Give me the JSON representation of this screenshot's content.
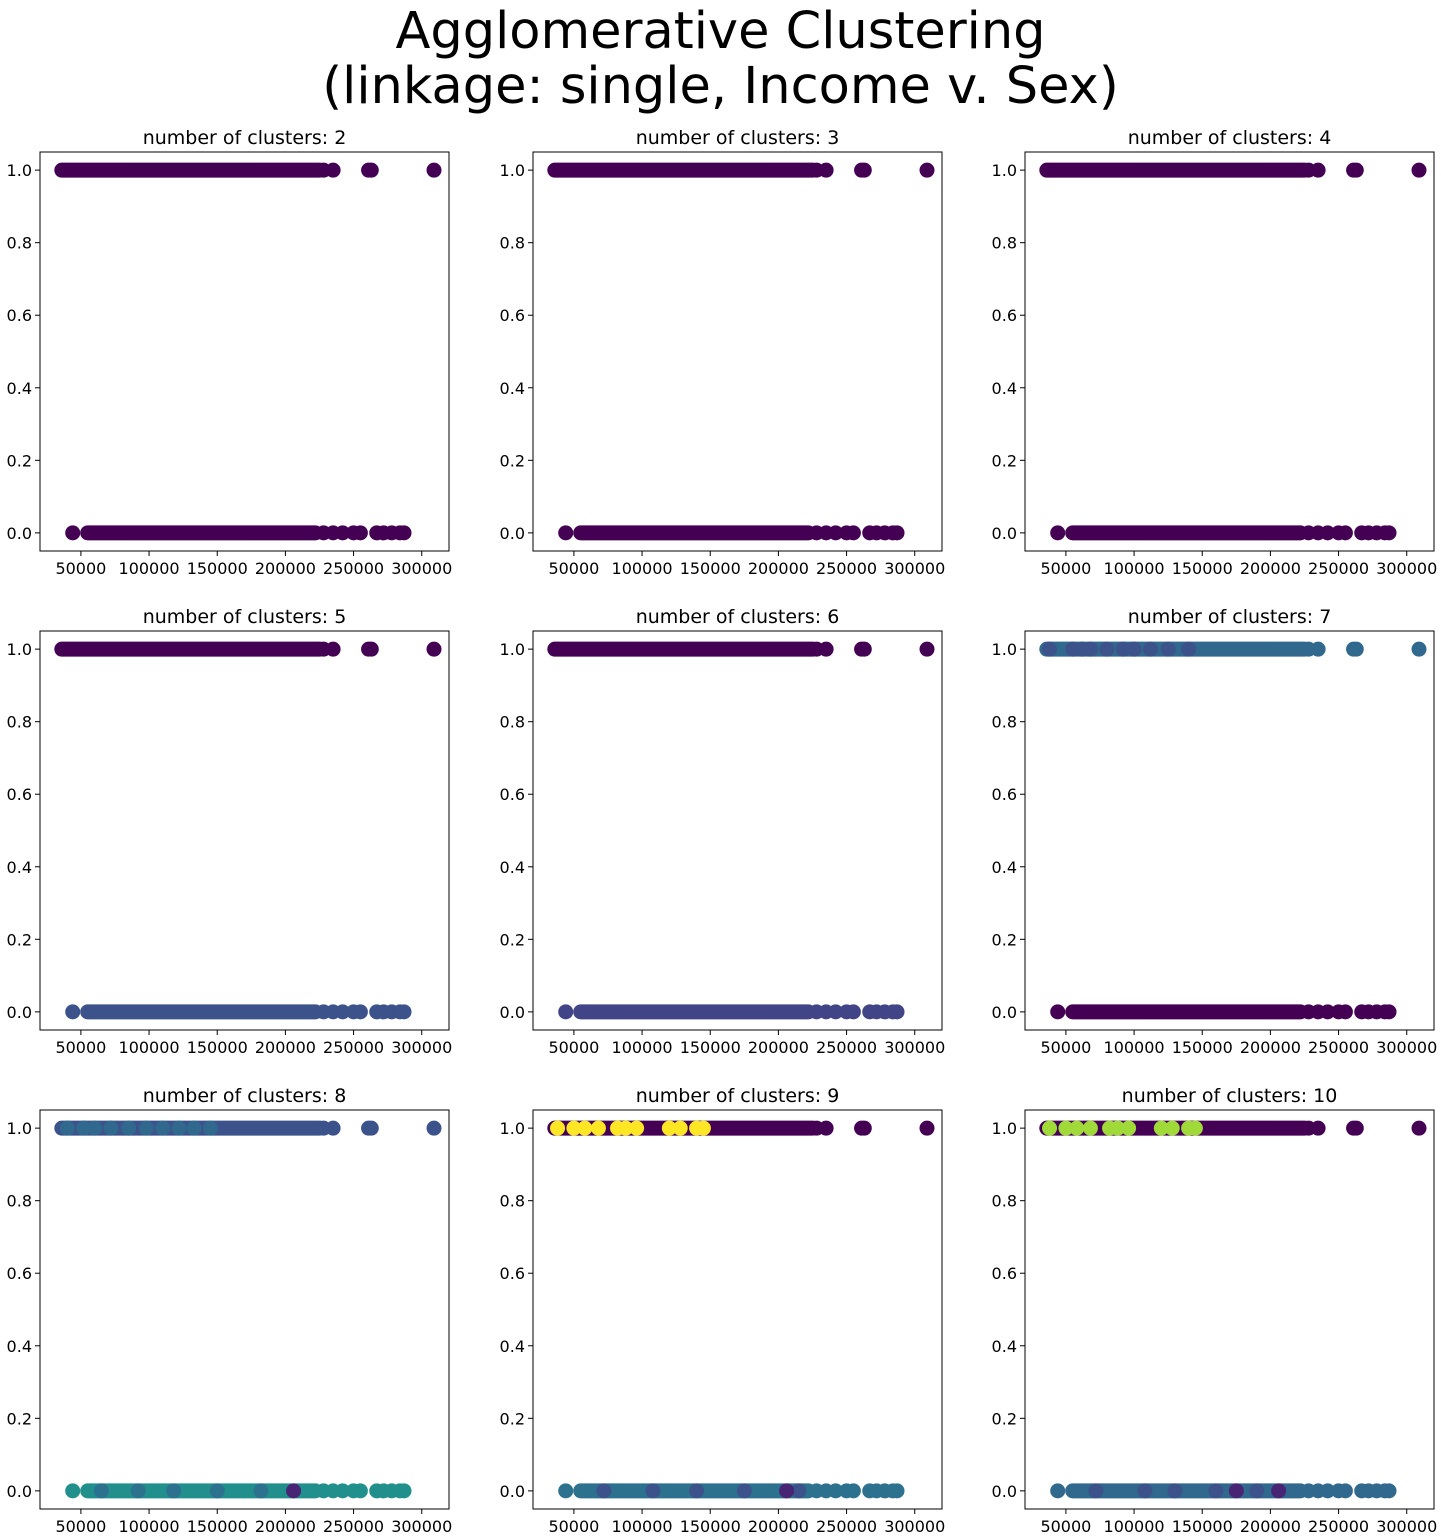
{
  "title_lines": [
    "Agglomerative Clustering",
    "(linkage: single, Income v. Sex)"
  ],
  "colors": {
    "viridis_dark": "#440154",
    "purple": "#482475",
    "indigo": "#414487",
    "blue_slate": "#3b528b",
    "steel_blue": "#31688e",
    "teal_blue": "#2c728e",
    "teal": "#21908d",
    "yellow": "#fde725",
    "lime": "#a0da39"
  },
  "chart_data": [
    {
      "type": "scatter",
      "title": "number of clusters: 2",
      "xlim": [
        20000,
        320000
      ],
      "ylim": [
        -0.05,
        1.05
      ],
      "xticks": [
        "50000",
        "100000",
        "150000",
        "200000",
        "250000",
        "300000"
      ],
      "yticks": [
        "0.0",
        "0.2",
        "0.4",
        "0.6",
        "0.8",
        "1.0"
      ],
      "series": [
        {
          "y": 1,
          "color": "#440154",
          "x_dense": [
            36000,
            225000
          ],
          "x": [
            228000,
            235000,
            261000,
            263000,
            309000
          ]
        },
        {
          "y": 0,
          "color": "#440154",
          "x_dense": [
            55000,
            222000
          ],
          "x": [
            44000,
            228000,
            235000,
            242000,
            250000,
            255000,
            267000,
            272000,
            278000,
            284000,
            287000
          ]
        }
      ]
    },
    {
      "type": "scatter",
      "title": "number of clusters: 3",
      "xlim": [
        20000,
        320000
      ],
      "ylim": [
        -0.05,
        1.05
      ],
      "xticks": [
        "50000",
        "100000",
        "150000",
        "200000",
        "250000",
        "300000"
      ],
      "yticks": [
        "0.0",
        "0.2",
        "0.4",
        "0.6",
        "0.8",
        "1.0"
      ],
      "series": [
        {
          "y": 1,
          "color": "#440154",
          "x_dense": [
            36000,
            225000
          ],
          "x": [
            228000,
            235000,
            261000,
            263000,
            309000
          ]
        },
        {
          "y": 0,
          "color": "#440154",
          "x_dense": [
            55000,
            222000
          ],
          "x": [
            44000,
            228000,
            235000,
            242000,
            250000,
            255000,
            267000,
            272000,
            278000,
            284000,
            287000
          ]
        }
      ]
    },
    {
      "type": "scatter",
      "title": "number of clusters: 4",
      "xlim": [
        20000,
        320000
      ],
      "ylim": [
        -0.05,
        1.05
      ],
      "xticks": [
        "50000",
        "100000",
        "150000",
        "200000",
        "250000",
        "300000"
      ],
      "yticks": [
        "0.0",
        "0.2",
        "0.4",
        "0.6",
        "0.8",
        "1.0"
      ],
      "series": [
        {
          "y": 1,
          "color": "#440154",
          "x_dense": [
            36000,
            225000
          ],
          "x": [
            228000,
            235000,
            261000,
            263000,
            309000
          ]
        },
        {
          "y": 0,
          "color": "#440154",
          "x_dense": [
            55000,
            222000
          ],
          "x": [
            44000,
            228000,
            235000,
            242000,
            250000,
            255000,
            267000,
            272000,
            278000,
            284000,
            287000
          ]
        }
      ]
    },
    {
      "type": "scatter",
      "title": "number of clusters: 5",
      "xlim": [
        20000,
        320000
      ],
      "ylim": [
        -0.05,
        1.05
      ],
      "xticks": [
        "50000",
        "100000",
        "150000",
        "200000",
        "250000",
        "300000"
      ],
      "yticks": [
        "0.0",
        "0.2",
        "0.4",
        "0.6",
        "0.8",
        "1.0"
      ],
      "series": [
        {
          "y": 1,
          "color": "#440154",
          "x_dense": [
            36000,
            225000
          ],
          "x": [
            228000,
            235000,
            261000,
            263000,
            309000
          ]
        },
        {
          "y": 0,
          "color": "#3b528b",
          "x_dense": [
            55000,
            222000
          ],
          "x": [
            44000,
            228000,
            235000,
            242000,
            250000,
            255000,
            267000,
            272000,
            278000,
            284000,
            287000
          ]
        }
      ]
    },
    {
      "type": "scatter",
      "title": "number of clusters: 6",
      "xlim": [
        20000,
        320000
      ],
      "ylim": [
        -0.05,
        1.05
      ],
      "xticks": [
        "50000",
        "100000",
        "150000",
        "200000",
        "250000",
        "300000"
      ],
      "yticks": [
        "0.0",
        "0.2",
        "0.4",
        "0.6",
        "0.8",
        "1.0"
      ],
      "series": [
        {
          "y": 1,
          "color": "#440154",
          "x_dense": [
            36000,
            225000
          ],
          "x": [
            228000,
            235000,
            261000,
            263000,
            309000
          ]
        },
        {
          "y": 0,
          "color": "#414487",
          "x_dense": [
            55000,
            222000
          ],
          "x": [
            44000,
            228000,
            235000,
            242000,
            250000,
            255000,
            267000,
            272000,
            278000,
            284000,
            287000
          ]
        }
      ]
    },
    {
      "type": "scatter",
      "title": "number of clusters: 7",
      "xlim": [
        20000,
        320000
      ],
      "ylim": [
        -0.05,
        1.05
      ],
      "xticks": [
        "50000",
        "100000",
        "150000",
        "200000",
        "250000",
        "300000"
      ],
      "yticks": [
        "0.0",
        "0.2",
        "0.4",
        "0.6",
        "0.8",
        "1.0"
      ],
      "series": [
        {
          "y": 1,
          "color": "#31688e",
          "x_dense": [
            36000,
            225000
          ],
          "x": [
            228000,
            235000,
            261000,
            263000,
            309000
          ]
        },
        {
          "y": 1,
          "color": "#3b528b",
          "x": [
            38000,
            55000,
            62000,
            68000,
            80000,
            92000,
            100000,
            112000,
            125000,
            140000
          ]
        },
        {
          "y": 0,
          "color": "#440154",
          "x_dense": [
            55000,
            222000
          ],
          "x": [
            44000,
            228000,
            235000,
            242000,
            250000,
            255000,
            267000,
            272000,
            278000,
            284000,
            287000
          ]
        }
      ]
    },
    {
      "type": "scatter",
      "title": "number of clusters: 8",
      "xlim": [
        20000,
        320000
      ],
      "ylim": [
        -0.05,
        1.05
      ],
      "xticks": [
        "50000",
        "100000",
        "150000",
        "200000",
        "250000",
        "300000"
      ],
      "yticks": [
        "0.0",
        "0.2",
        "0.4",
        "0.6",
        "0.8",
        "1.0"
      ],
      "series": [
        {
          "y": 1,
          "color": "#3b528b",
          "x_dense": [
            36000,
            225000
          ],
          "x": [
            228000,
            235000,
            261000,
            263000,
            309000
          ]
        },
        {
          "y": 1,
          "color": "#31688e",
          "x": [
            40000,
            52000,
            60000,
            72000,
            85000,
            98000,
            110000,
            122000,
            133000,
            145000
          ]
        },
        {
          "y": 0,
          "color": "#21908d",
          "x_dense": [
            55000,
            222000
          ],
          "x": [
            44000,
            228000,
            235000,
            242000,
            250000,
            255000,
            267000,
            272000,
            278000,
            284000,
            287000
          ]
        },
        {
          "y": 0,
          "color": "#2c728e",
          "x": [
            65000,
            92000,
            118000,
            150000,
            182000
          ]
        },
        {
          "y": 0,
          "color": "#482475",
          "x": [
            206000
          ]
        }
      ]
    },
    {
      "type": "scatter",
      "title": "number of clusters: 9",
      "xlim": [
        20000,
        320000
      ],
      "ylim": [
        -0.05,
        1.05
      ],
      "xticks": [
        "50000",
        "100000",
        "150000",
        "200000",
        "250000",
        "300000"
      ],
      "yticks": [
        "0.0",
        "0.2",
        "0.4",
        "0.6",
        "0.8",
        "1.0"
      ],
      "series": [
        {
          "y": 1,
          "color": "#440154",
          "x_dense": [
            36000,
            225000
          ],
          "x": [
            228000,
            235000,
            261000,
            263000,
            309000
          ]
        },
        {
          "y": 1,
          "color": "#fde725",
          "x": [
            38000,
            50000,
            58000,
            68000,
            82000,
            88000,
            96000,
            120000,
            128000,
            140000,
            145000
          ]
        },
        {
          "y": 0,
          "color": "#2c728e",
          "x_dense": [
            55000,
            222000
          ],
          "x": [
            44000,
            228000,
            235000,
            242000,
            250000,
            255000,
            267000,
            272000,
            278000,
            284000,
            287000
          ]
        },
        {
          "y": 0,
          "color": "#3b528b",
          "x": [
            72000,
            108000,
            140000,
            175000,
            215000
          ]
        },
        {
          "y": 0,
          "color": "#482475",
          "x": [
            206000
          ]
        }
      ]
    },
    {
      "type": "scatter",
      "title": "number of clusters: 10",
      "xlim": [
        20000,
        320000
      ],
      "ylim": [
        -0.05,
        1.05
      ],
      "xticks": [
        "50000",
        "100000",
        "150000",
        "200000",
        "250000",
        "300000"
      ],
      "yticks": [
        "0.0",
        "0.2",
        "0.4",
        "0.6",
        "0.8",
        "1.0"
      ],
      "series": [
        {
          "y": 1,
          "color": "#440154",
          "x_dense": [
            36000,
            225000
          ],
          "x": [
            228000,
            235000,
            261000,
            263000,
            309000
          ]
        },
        {
          "y": 1,
          "color": "#a0da39",
          "x": [
            38000,
            50000,
            58000,
            68000,
            82000,
            88000,
            96000,
            120000,
            128000,
            140000,
            145000
          ]
        },
        {
          "y": 0,
          "color": "#31688e",
          "x_dense": [
            55000,
            222000
          ],
          "x": [
            44000,
            228000,
            235000,
            242000,
            250000,
            255000,
            267000,
            272000,
            278000,
            284000,
            287000
          ]
        },
        {
          "y": 0,
          "color": "#3b528b",
          "x": [
            72000,
            108000,
            130000,
            160000,
            190000
          ]
        },
        {
          "y": 0,
          "color": "#482475",
          "x": [
            206000,
            175000
          ]
        }
      ]
    }
  ]
}
